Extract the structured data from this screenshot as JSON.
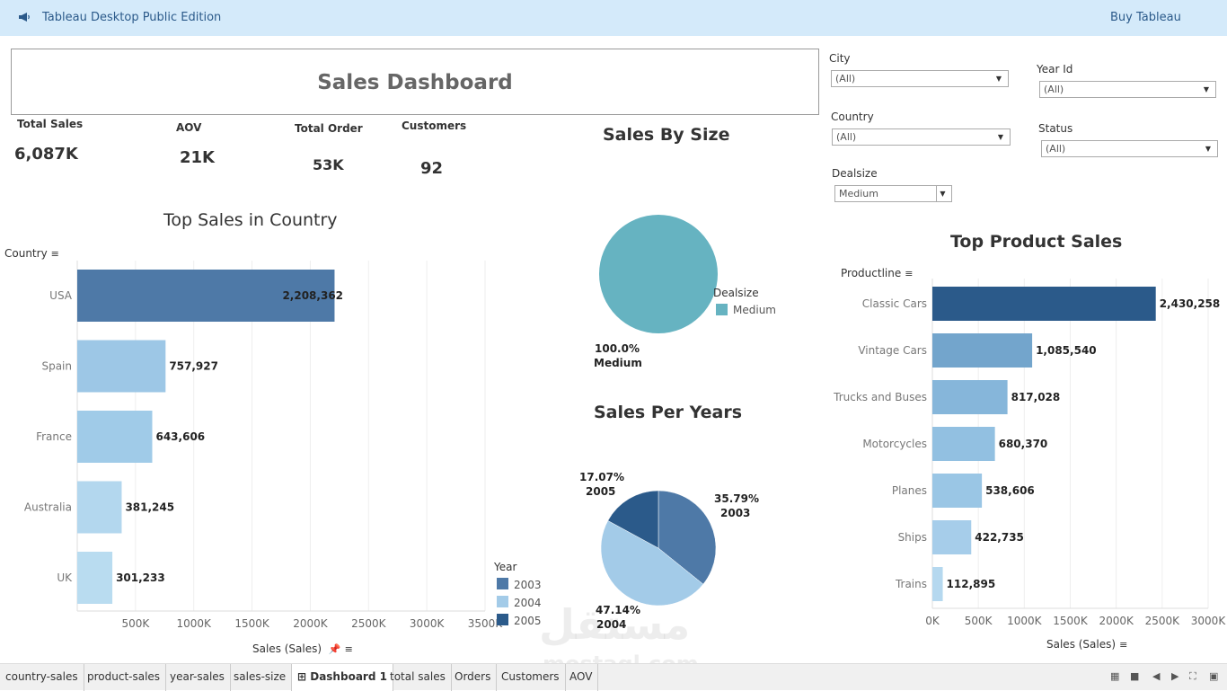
{
  "app": {
    "title": "Tableau Desktop Public Edition",
    "buy_label": "Buy Tableau",
    "icon": "megaphone-icon"
  },
  "dashboard": {
    "title": "Sales Dashboard"
  },
  "kpis": [
    {
      "label": "Total Sales",
      "value": "6,087K"
    },
    {
      "label": "AOV",
      "value": "21K"
    },
    {
      "label": "Total Order",
      "value": "53K"
    },
    {
      "label": "Customers",
      "value": "92"
    }
  ],
  "filters": {
    "city": {
      "label": "City",
      "value": "(All)"
    },
    "year_id": {
      "label": "Year Id",
      "value": "(All)"
    },
    "country": {
      "label": "Country",
      "value": "(All)"
    },
    "status": {
      "label": "Status",
      "value": "(All)"
    },
    "dealsize": {
      "label": "Dealsize",
      "value": "Medium"
    }
  },
  "tabs": [
    {
      "label": "country-sales",
      "active": false
    },
    {
      "label": "product-sales",
      "active": false
    },
    {
      "label": "year-sales",
      "active": false
    },
    {
      "label": "sales-size",
      "active": false
    },
    {
      "label": "Dashboard 1",
      "active": true
    },
    {
      "label": "total sales",
      "active": false
    },
    {
      "label": "Orders",
      "active": false
    },
    {
      "label": "Customers",
      "active": false
    },
    {
      "label": "AOV",
      "active": false
    }
  ],
  "watermark": {
    "arabic": "مستقل",
    "latin": "mostaql.com"
  },
  "chart_data": [
    {
      "id": "country",
      "type": "bar",
      "orientation": "horizontal",
      "title": "Top Sales in Country",
      "ylabel": "Country",
      "xlabel": "Sales (Sales)",
      "categories": [
        "USA",
        "Spain",
        "France",
        "Australia",
        "UK"
      ],
      "values": [
        2208362,
        757927,
        643606,
        381245,
        301233
      ],
      "value_labels": [
        "2,208,362",
        "757,927",
        "643,606",
        "381,245",
        "301,233"
      ],
      "colors": [
        "#4e79a7",
        "#9dc7e6",
        "#a0cbe8",
        "#b3d7ee",
        "#b9dcf0"
      ],
      "xlim": [
        0,
        3500000
      ],
      "xticks": [
        500000,
        1000000,
        1500000,
        2000000,
        2500000,
        3000000,
        3500000
      ],
      "xtick_labels": [
        "500K",
        "1000K",
        "1500K",
        "2000K",
        "2500K",
        "3000K",
        "3500K"
      ],
      "grid": true
    },
    {
      "id": "size",
      "type": "pie",
      "title": "Sales By Size",
      "labels": [
        "Medium"
      ],
      "values": [
        100.0
      ],
      "label_text": [
        "100.0%",
        "Medium"
      ],
      "colors": [
        "#66b3c1"
      ],
      "legend": {
        "title": "Dealsize",
        "entries": [
          "Medium"
        ],
        "placement": "right"
      }
    },
    {
      "id": "years",
      "type": "pie",
      "title": "Sales Per Years",
      "labels": [
        "2003",
        "2004",
        "2005"
      ],
      "values": [
        35.79,
        47.14,
        17.07
      ],
      "percent_labels": [
        "35.79%",
        "47.14%",
        "17.07%"
      ],
      "colors": [
        "#4e79a7",
        "#a3cbe8",
        "#2b5a8a"
      ],
      "legend": {
        "title": "Year",
        "entries": [
          "2003",
          "2004",
          "2005"
        ],
        "placement": "left"
      }
    },
    {
      "id": "product",
      "type": "bar",
      "orientation": "horizontal",
      "title": "Top Product Sales",
      "ylabel": "Productline",
      "xlabel": "Sales (Sales)",
      "categories": [
        "Classic Cars",
        "Vintage Cars",
        "Trucks and Buses",
        "Motorcycles",
        "Planes",
        "Ships",
        "Trains"
      ],
      "values": [
        2430258,
        1085540,
        817028,
        680370,
        538606,
        422735,
        112895
      ],
      "value_labels": [
        "2,430,258",
        "1,085,540",
        "817,028",
        "680,370",
        "538,606",
        "422,735",
        "112,895"
      ],
      "colors": [
        "#2b5a8a",
        "#73a5cc",
        "#86b6da",
        "#92c0e1",
        "#9ac6e5",
        "#a6cdea",
        "#b5d8ef"
      ],
      "xlim": [
        0,
        3000000
      ],
      "xticks": [
        0,
        500000,
        1000000,
        1500000,
        2000000,
        2500000,
        3000000
      ],
      "xtick_labels": [
        "0K",
        "500K",
        "1000K",
        "1500K",
        "2000K",
        "2500K",
        "3000K"
      ],
      "grid": true
    }
  ]
}
